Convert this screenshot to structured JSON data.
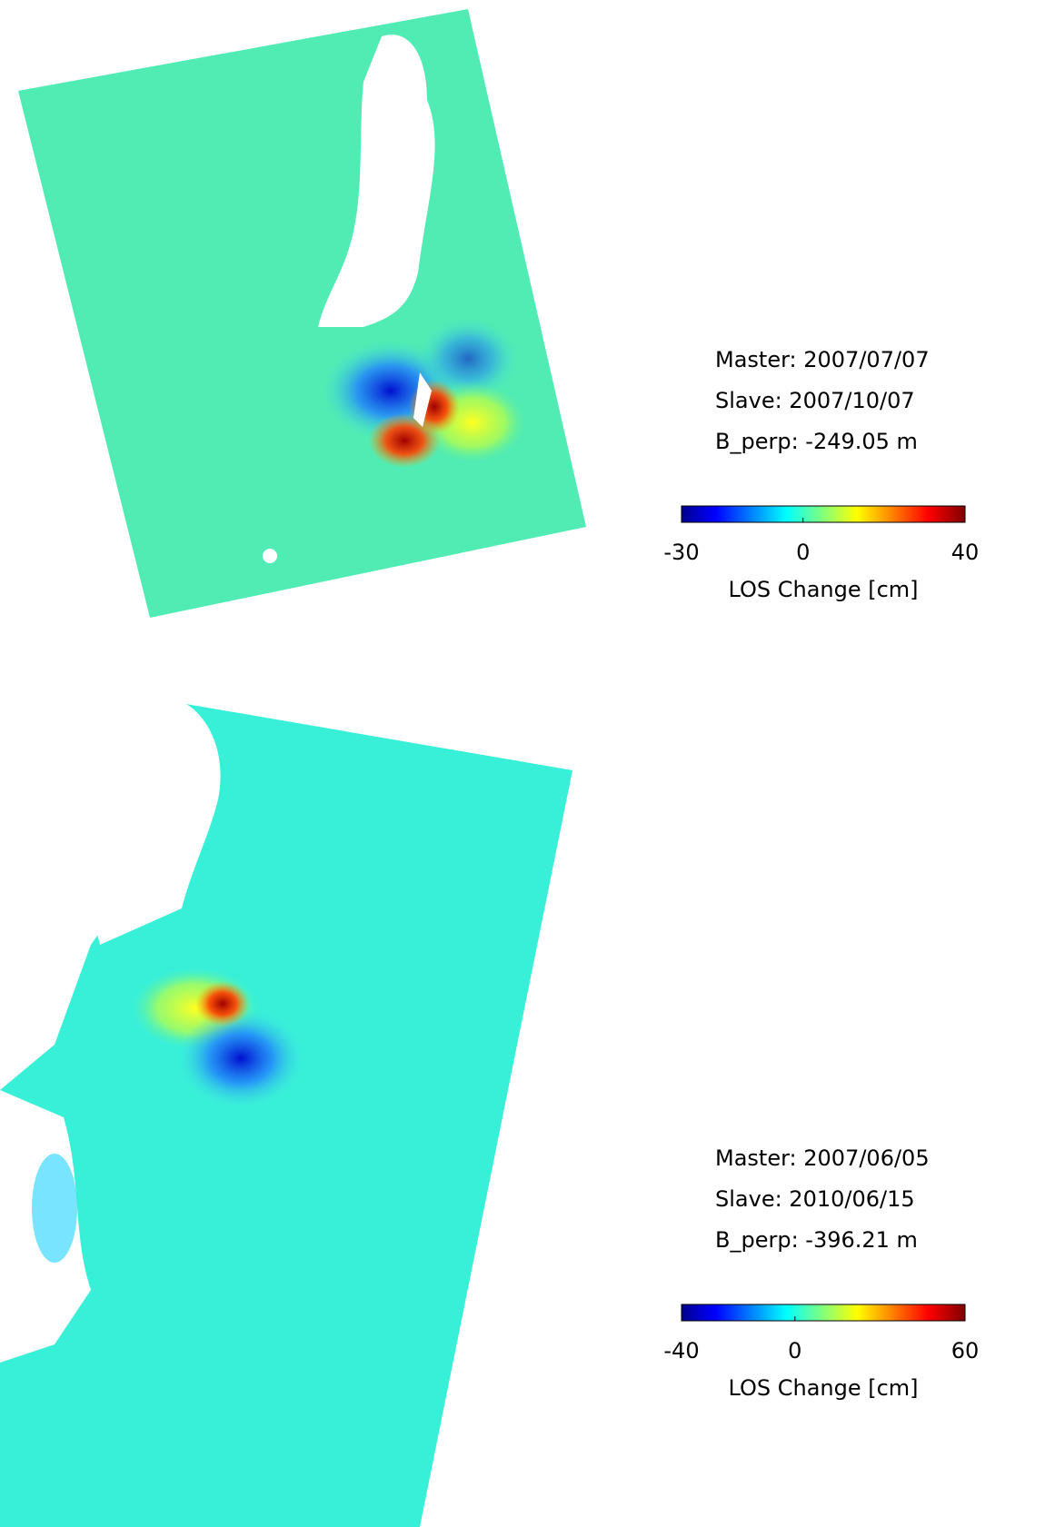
{
  "panels": [
    {
      "master": "Master: 2007/07/07",
      "slave": "Slave: 2007/10/07",
      "b_perp": "B_perp: -249.05 m",
      "colorbar": {
        "lim": [
          -30,
          40
        ],
        "ticks": [
          -30,
          0,
          40
        ],
        "label": "LOS Change [cm]"
      }
    },
    {
      "master": "Master: 2007/06/05",
      "slave": "Slave: 2010/06/15",
      "b_perp": "B_perp: -396.21 m",
      "colorbar": {
        "lim": [
          -40,
          60
        ],
        "ticks": [
          -40,
          0,
          60
        ],
        "label": "LOS Change [cm]"
      }
    }
  ]
}
